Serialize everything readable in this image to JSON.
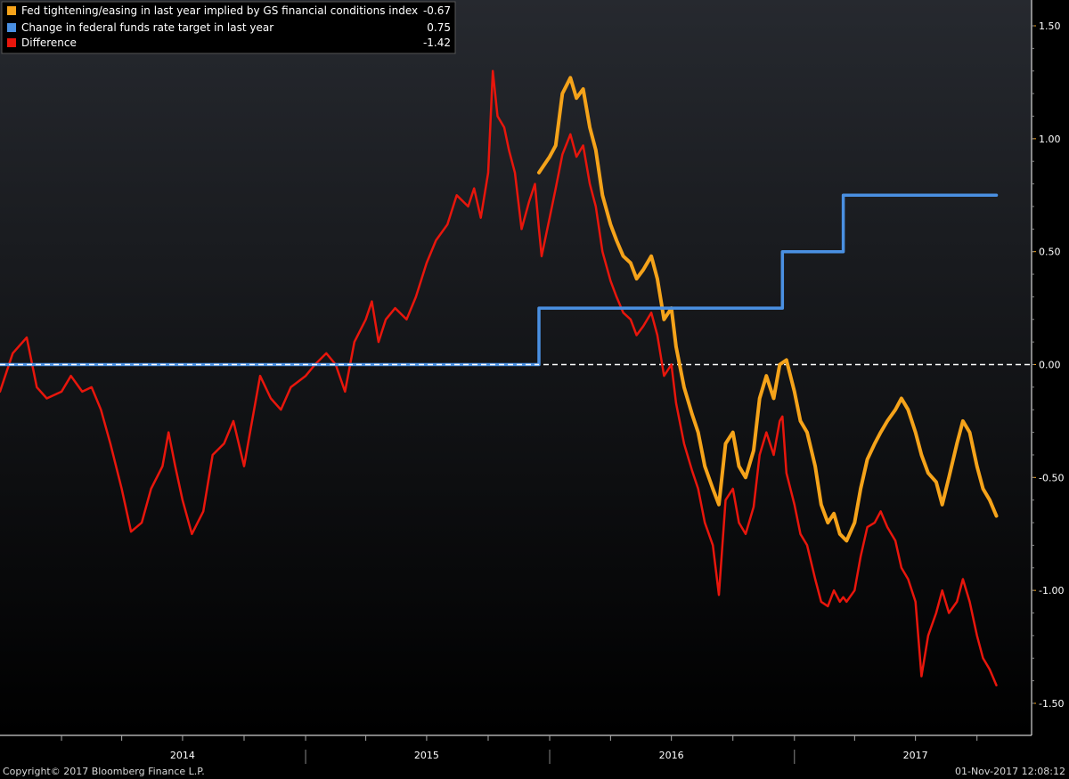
{
  "chart_data": {
    "type": "line",
    "y_range": [
      -1.5,
      1.5
    ],
    "x_range": [
      "2013-10-01",
      "2017-11-01"
    ],
    "grid": false,
    "legend_placement": "top-left",
    "zero_line": {
      "value": 0,
      "style": "dashed",
      "color": "#ffffff"
    },
    "legend": [
      {
        "label": "Fed tightening/easing in last year implied by GS financial conditions index",
        "value": "-0.67",
        "color": "#f5a31a"
      },
      {
        "label": "Change in federal funds rate target in last year",
        "value": "0.75",
        "color": "#4a90e2"
      },
      {
        "label": "Difference",
        "value": "-1.42",
        "color": "#e8160c"
      }
    ],
    "y_ticks": [
      "1.50",
      "1.00",
      "0.50",
      "0.00",
      "-0.50",
      "-1.00",
      "-1.50"
    ],
    "y_tick_values": [
      1.5,
      1.0,
      0.5,
      0.0,
      -0.5,
      -1.0,
      -1.5
    ],
    "x_labels": [
      {
        "label": "2014",
        "date": "2014-07-01"
      },
      {
        "label": "2015",
        "date": "2015-07-01"
      },
      {
        "label": "2016",
        "date": "2016-07-01"
      },
      {
        "label": "2017",
        "date": "2017-07-01"
      }
    ],
    "x_minor_tick_dates": [
      "2014-01-01",
      "2014-04-01",
      "2014-07-01",
      "2014-10-01",
      "2015-01-01",
      "2015-04-01",
      "2015-07-01",
      "2015-10-01",
      "2016-01-01",
      "2016-04-01",
      "2016-07-01",
      "2016-10-01",
      "2017-01-01",
      "2017-04-01",
      "2017-07-01",
      "2017-10-01"
    ],
    "x_year_divider_dates": [
      "2015-01-01",
      "2016-01-01",
      "2017-01-01"
    ],
    "series": [
      {
        "name": "Fed tightening/easing in last year implied by GS financial conditions index",
        "color": "#f5a31a",
        "points": [
          [
            "2015-12-16",
            0.85
          ],
          [
            "2016-01-01",
            0.92
          ],
          [
            "2016-01-10",
            0.97
          ],
          [
            "2016-01-20",
            1.2
          ],
          [
            "2016-02-01",
            1.27
          ],
          [
            "2016-02-10",
            1.18
          ],
          [
            "2016-02-20",
            1.22
          ],
          [
            "2016-03-01",
            1.05
          ],
          [
            "2016-03-10",
            0.95
          ],
          [
            "2016-03-20",
            0.75
          ],
          [
            "2016-04-01",
            0.62
          ],
          [
            "2016-04-10",
            0.55
          ],
          [
            "2016-04-20",
            0.48
          ],
          [
            "2016-05-01",
            0.45
          ],
          [
            "2016-05-10",
            0.38
          ],
          [
            "2016-05-20",
            0.42
          ],
          [
            "2016-06-01",
            0.48
          ],
          [
            "2016-06-10",
            0.38
          ],
          [
            "2016-06-20",
            0.2
          ],
          [
            "2016-07-01",
            0.25
          ],
          [
            "2016-07-08",
            0.08
          ],
          [
            "2016-07-20",
            -0.1
          ],
          [
            "2016-08-01",
            -0.22
          ],
          [
            "2016-08-10",
            -0.3
          ],
          [
            "2016-08-20",
            -0.45
          ],
          [
            "2016-09-01",
            -0.55
          ],
          [
            "2016-09-10",
            -0.62
          ],
          [
            "2016-09-20",
            -0.35
          ],
          [
            "2016-10-01",
            -0.3
          ],
          [
            "2016-10-10",
            -0.45
          ],
          [
            "2016-10-20",
            -0.5
          ],
          [
            "2016-11-01",
            -0.38
          ],
          [
            "2016-11-10",
            -0.15
          ],
          [
            "2016-11-20",
            -0.05
          ],
          [
            "2016-12-01",
            -0.15
          ],
          [
            "2016-12-10",
            0.0
          ],
          [
            "2016-12-20",
            0.02
          ],
          [
            "2017-01-01",
            -0.12
          ],
          [
            "2017-01-10",
            -0.25
          ],
          [
            "2017-01-20",
            -0.3
          ],
          [
            "2017-02-01",
            -0.45
          ],
          [
            "2017-02-10",
            -0.62
          ],
          [
            "2017-02-20",
            -0.7
          ],
          [
            "2017-03-01",
            -0.66
          ],
          [
            "2017-03-10",
            -0.75
          ],
          [
            "2017-03-20",
            -0.78
          ],
          [
            "2017-04-01",
            -0.7
          ],
          [
            "2017-04-10",
            -0.55
          ],
          [
            "2017-04-20",
            -0.42
          ],
          [
            "2017-05-01",
            -0.35
          ],
          [
            "2017-05-10",
            -0.3
          ],
          [
            "2017-05-20",
            -0.25
          ],
          [
            "2017-06-01",
            -0.2
          ],
          [
            "2017-06-10",
            -0.15
          ],
          [
            "2017-06-20",
            -0.2
          ],
          [
            "2017-07-01",
            -0.3
          ],
          [
            "2017-07-10",
            -0.4
          ],
          [
            "2017-07-20",
            -0.48
          ],
          [
            "2017-08-01",
            -0.52
          ],
          [
            "2017-08-10",
            -0.62
          ],
          [
            "2017-08-20",
            -0.5
          ],
          [
            "2017-09-01",
            -0.35
          ],
          [
            "2017-09-10",
            -0.25
          ],
          [
            "2017-09-20",
            -0.3
          ],
          [
            "2017-10-01",
            -0.45
          ],
          [
            "2017-10-10",
            -0.55
          ],
          [
            "2017-10-20",
            -0.6
          ],
          [
            "2017-10-30",
            -0.67
          ]
        ]
      },
      {
        "name": "Change in federal funds rate target in last year",
        "color": "#4a90e2",
        "points": [
          [
            "2013-10-01",
            0.0
          ],
          [
            "2015-12-16",
            0.0
          ],
          [
            "2015-12-16",
            0.25
          ],
          [
            "2016-12-14",
            0.25
          ],
          [
            "2016-12-14",
            0.5
          ],
          [
            "2017-03-15",
            0.5
          ],
          [
            "2017-03-15",
            0.75
          ],
          [
            "2017-10-30",
            0.75
          ]
        ]
      },
      {
        "name": "Difference",
        "color": "#e8160c",
        "points": [
          [
            "2013-10-01",
            -0.12
          ],
          [
            "2013-10-20",
            0.05
          ],
          [
            "2013-11-10",
            0.12
          ],
          [
            "2013-11-25",
            -0.1
          ],
          [
            "2013-12-10",
            -0.15
          ],
          [
            "2014-01-01",
            -0.12
          ],
          [
            "2014-01-15",
            -0.05
          ],
          [
            "2014-02-01",
            -0.12
          ],
          [
            "2014-02-15",
            -0.1
          ],
          [
            "2014-03-01",
            -0.2
          ],
          [
            "2014-03-15",
            -0.35
          ],
          [
            "2014-04-01",
            -0.55
          ],
          [
            "2014-04-15",
            -0.74
          ],
          [
            "2014-05-01",
            -0.7
          ],
          [
            "2014-05-15",
            -0.55
          ],
          [
            "2014-06-01",
            -0.45
          ],
          [
            "2014-06-10",
            -0.3
          ],
          [
            "2014-06-20",
            -0.45
          ],
          [
            "2014-07-01",
            -0.6
          ],
          [
            "2014-07-15",
            -0.75
          ],
          [
            "2014-08-01",
            -0.65
          ],
          [
            "2014-08-15",
            -0.4
          ],
          [
            "2014-09-01",
            -0.35
          ],
          [
            "2014-09-15",
            -0.25
          ],
          [
            "2014-10-01",
            -0.45
          ],
          [
            "2014-10-10",
            -0.3
          ],
          [
            "2014-10-25",
            -0.05
          ],
          [
            "2014-11-10",
            -0.15
          ],
          [
            "2014-11-25",
            -0.2
          ],
          [
            "2014-12-10",
            -0.1
          ],
          [
            "2015-01-01",
            -0.05
          ],
          [
            "2015-01-15",
            0.0
          ],
          [
            "2015-02-01",
            0.05
          ],
          [
            "2015-02-15",
            0.0
          ],
          [
            "2015-03-01",
            -0.12
          ],
          [
            "2015-03-15",
            0.1
          ],
          [
            "2015-04-01",
            0.2
          ],
          [
            "2015-04-10",
            0.28
          ],
          [
            "2015-04-20",
            0.1
          ],
          [
            "2015-05-01",
            0.2
          ],
          [
            "2015-05-15",
            0.25
          ],
          [
            "2015-06-01",
            0.2
          ],
          [
            "2015-06-15",
            0.3
          ],
          [
            "2015-07-01",
            0.45
          ],
          [
            "2015-07-15",
            0.55
          ],
          [
            "2015-08-01",
            0.62
          ],
          [
            "2015-08-15",
            0.75
          ],
          [
            "2015-09-01",
            0.7
          ],
          [
            "2015-09-10",
            0.78
          ],
          [
            "2015-09-20",
            0.65
          ],
          [
            "2015-10-01",
            0.85
          ],
          [
            "2015-10-08",
            1.3
          ],
          [
            "2015-10-15",
            1.1
          ],
          [
            "2015-10-25",
            1.05
          ],
          [
            "2015-11-01",
            0.95
          ],
          [
            "2015-11-10",
            0.85
          ],
          [
            "2015-11-20",
            0.6
          ],
          [
            "2015-12-01",
            0.72
          ],
          [
            "2015-12-10",
            0.8
          ],
          [
            "2015-12-16",
            0.6
          ],
          [
            "2015-12-20",
            0.48
          ],
          [
            "2016-01-01",
            0.65
          ],
          [
            "2016-01-10",
            0.78
          ],
          [
            "2016-01-20",
            0.93
          ],
          [
            "2016-02-01",
            1.02
          ],
          [
            "2016-02-10",
            0.92
          ],
          [
            "2016-02-20",
            0.97
          ],
          [
            "2016-03-01",
            0.8
          ],
          [
            "2016-03-10",
            0.7
          ],
          [
            "2016-03-20",
            0.5
          ],
          [
            "2016-04-01",
            0.37
          ],
          [
            "2016-04-10",
            0.3
          ],
          [
            "2016-04-20",
            0.23
          ],
          [
            "2016-05-01",
            0.2
          ],
          [
            "2016-05-10",
            0.13
          ],
          [
            "2016-05-20",
            0.17
          ],
          [
            "2016-06-01",
            0.23
          ],
          [
            "2016-06-10",
            0.13
          ],
          [
            "2016-06-20",
            -0.05
          ],
          [
            "2016-07-01",
            0.0
          ],
          [
            "2016-07-08",
            -0.17
          ],
          [
            "2016-07-20",
            -0.35
          ],
          [
            "2016-08-01",
            -0.47
          ],
          [
            "2016-08-10",
            -0.55
          ],
          [
            "2016-08-20",
            -0.7
          ],
          [
            "2016-09-01",
            -0.8
          ],
          [
            "2016-09-10",
            -1.02
          ],
          [
            "2016-09-20",
            -0.6
          ],
          [
            "2016-10-01",
            -0.55
          ],
          [
            "2016-10-10",
            -0.7
          ],
          [
            "2016-10-20",
            -0.75
          ],
          [
            "2016-11-01",
            -0.63
          ],
          [
            "2016-11-10",
            -0.4
          ],
          [
            "2016-11-20",
            -0.3
          ],
          [
            "2016-12-01",
            -0.4
          ],
          [
            "2016-12-10",
            -0.25
          ],
          [
            "2016-12-14",
            -0.23
          ],
          [
            "2016-12-20",
            -0.48
          ],
          [
            "2017-01-01",
            -0.62
          ],
          [
            "2017-01-10",
            -0.75
          ],
          [
            "2017-01-20",
            -0.8
          ],
          [
            "2017-02-01",
            -0.95
          ],
          [
            "2017-02-10",
            -1.05
          ],
          [
            "2017-02-20",
            -1.07
          ],
          [
            "2017-03-01",
            -1.0
          ],
          [
            "2017-03-10",
            -1.05
          ],
          [
            "2017-03-15",
            -1.03
          ],
          [
            "2017-03-20",
            -1.05
          ],
          [
            "2017-04-01",
            -1.0
          ],
          [
            "2017-04-10",
            -0.85
          ],
          [
            "2017-04-20",
            -0.72
          ],
          [
            "2017-05-01",
            -0.7
          ],
          [
            "2017-05-10",
            -0.65
          ],
          [
            "2017-05-20",
            -0.72
          ],
          [
            "2017-06-01",
            -0.78
          ],
          [
            "2017-06-10",
            -0.9
          ],
          [
            "2017-06-20",
            -0.95
          ],
          [
            "2017-07-01",
            -1.05
          ],
          [
            "2017-07-10",
            -1.38
          ],
          [
            "2017-07-20",
            -1.2
          ],
          [
            "2017-08-01",
            -1.1
          ],
          [
            "2017-08-10",
            -1.0
          ],
          [
            "2017-08-20",
            -1.1
          ],
          [
            "2017-09-01",
            -1.05
          ],
          [
            "2017-09-10",
            -0.95
          ],
          [
            "2017-09-20",
            -1.05
          ],
          [
            "2017-10-01",
            -1.2
          ],
          [
            "2017-10-10",
            -1.3
          ],
          [
            "2017-10-20",
            -1.35
          ],
          [
            "2017-10-30",
            -1.42
          ]
        ]
      }
    ]
  },
  "footer": {
    "copyright": "Copyright© 2017 Bloomberg Finance L.P.",
    "timestamp": "01-Nov-2017 12:08:12"
  }
}
